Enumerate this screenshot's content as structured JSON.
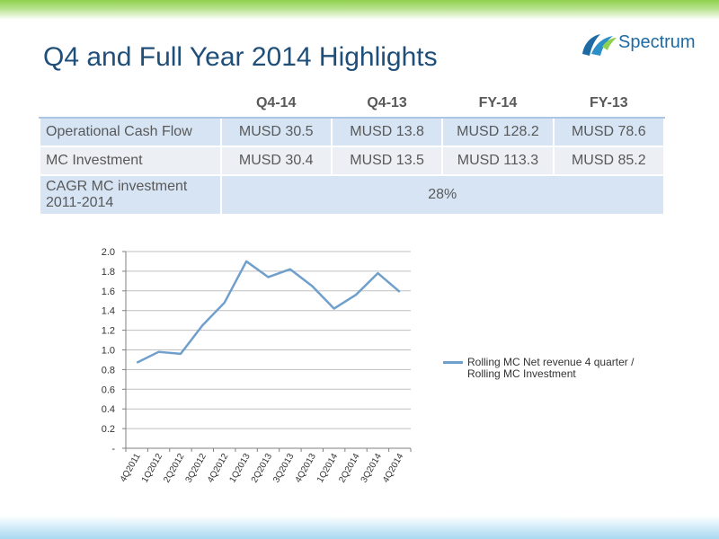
{
  "page": {
    "title": "Q4 and Full Year 2014 Highlights",
    "logo_text": "Spectrum"
  },
  "table": {
    "headers": [
      "",
      "Q4-14",
      "Q4-13",
      "FY-14",
      "FY-13"
    ],
    "rows": [
      {
        "label": "Operational Cash Flow",
        "cells": [
          "MUSD 30.5",
          "MUSD  13.8",
          "MUSD 128.2",
          "MUSD 78.6"
        ]
      },
      {
        "label": "MC Investment",
        "cells": [
          "MUSD 30.4",
          "MUSD 13.5",
          "MUSD 113.3",
          "MUSD 85.2"
        ]
      },
      {
        "label": "CAGR MC investment 2011-2014",
        "merged_value": "28%"
      }
    ]
  },
  "chart_data": {
    "type": "line",
    "categories": [
      "4Q2011",
      "1Q2012",
      "2Q2012",
      "3Q2012",
      "4Q2012",
      "1Q2013",
      "2Q2013",
      "3Q2013",
      "4Q2013",
      "1Q2014",
      "2Q2014",
      "3Q2014",
      "4Q2014"
    ],
    "series": [
      {
        "name": "Rolling MC Net revenue 4 quarter / Rolling MC Investment",
        "values": [
          0.87,
          0.98,
          0.96,
          1.25,
          1.48,
          1.9,
          1.74,
          1.82,
          1.65,
          1.42,
          1.56,
          1.78,
          1.59
        ],
        "color": "#6f9fcb"
      }
    ],
    "y_ticks": [
      "-",
      "0.2",
      "0.4",
      "0.6",
      "0.8",
      "1.0",
      "1.2",
      "1.4",
      "1.6",
      "1.8",
      "2.0"
    ],
    "ylim": [
      0,
      2.0
    ],
    "grid": true,
    "legend_position": "right"
  },
  "colors": {
    "title": "#1f4e79",
    "row_blue": "#d6e4f4",
    "row_gray": "#eceff3",
    "line": "#6f9fcb"
  }
}
